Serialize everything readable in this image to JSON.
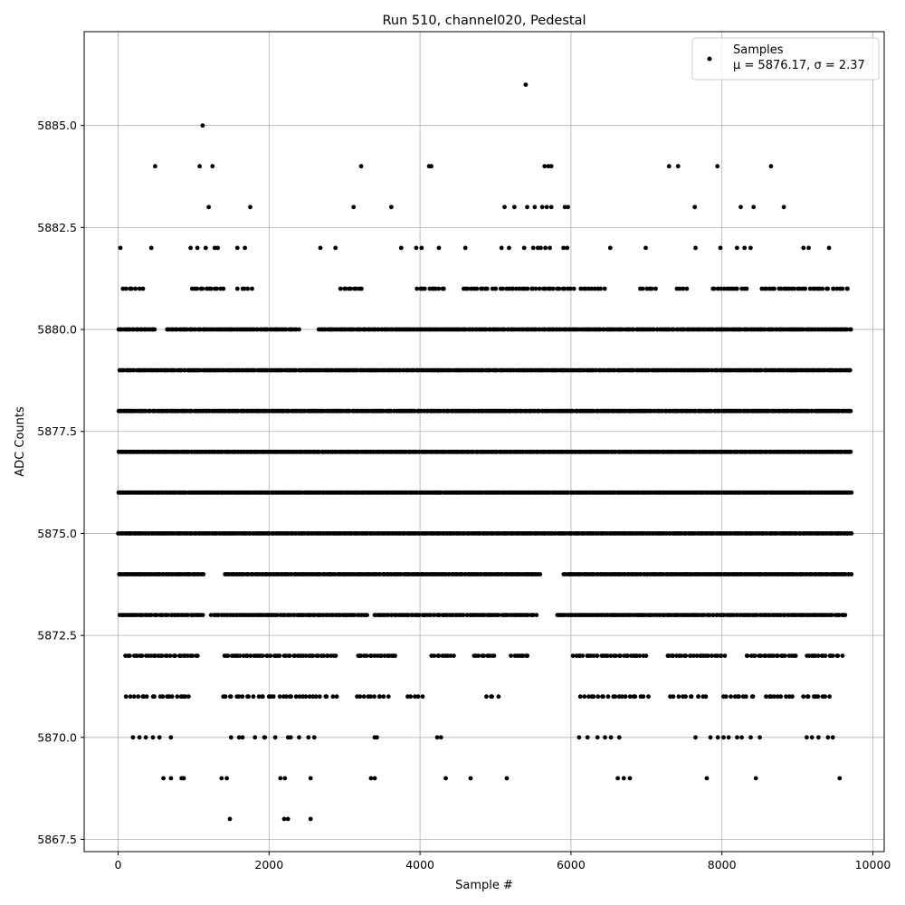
{
  "chart_data": {
    "type": "scatter",
    "title": "Run 510, channel020, Pedestal",
    "xlabel": "Sample #",
    "ylabel": "ADC Counts",
    "xlim": [
      -450,
      10150
    ],
    "ylim": [
      5867.2,
      5887.3
    ],
    "xticks": [
      0,
      2000,
      4000,
      6000,
      8000,
      10000
    ],
    "xtick_labels": [
      "0",
      "2000",
      "4000",
      "6000",
      "8000",
      "10000"
    ],
    "yticks": [
      5867.5,
      5870.0,
      5872.5,
      5875.0,
      5877.5,
      5880.0,
      5882.5,
      5885.0
    ],
    "ytick_labels": [
      "5867.5",
      "5870.0",
      "5872.5",
      "5875.0",
      "5877.5",
      "5880.0",
      "5882.5",
      "5885.0"
    ],
    "grid": true,
    "legend": {
      "placement": "top-right",
      "entry_name": "Samples",
      "entry_stats": "μ = 5876.17, σ = 2.37"
    },
    "marker_color": "#000000",
    "series": [
      {
        "points": [
          [
            5400,
            5886
          ],
          [
            1120,
            5885
          ],
          [
            490,
            5884
          ],
          [
            1080,
            5884
          ],
          [
            1250,
            5884
          ],
          [
            3220,
            5884
          ],
          [
            4120,
            5884
          ],
          [
            4150,
            5884
          ],
          [
            5650,
            5884
          ],
          [
            5700,
            5884
          ],
          [
            5740,
            5884
          ],
          [
            7300,
            5884
          ],
          [
            7420,
            5884
          ],
          [
            7940,
            5884
          ],
          [
            8650,
            5884
          ],
          [
            1200,
            5883
          ],
          [
            1750,
            5883
          ],
          [
            3120,
            5883
          ],
          [
            3620,
            5883
          ],
          [
            5120,
            5883
          ],
          [
            5250,
            5883
          ],
          [
            5420,
            5883
          ],
          [
            5520,
            5883
          ],
          [
            5620,
            5883
          ],
          [
            5680,
            5883
          ],
          [
            5740,
            5883
          ],
          [
            5920,
            5883
          ],
          [
            5960,
            5883
          ],
          [
            7640,
            5883
          ],
          [
            8250,
            5883
          ],
          [
            8420,
            5883
          ],
          [
            8820,
            5883
          ],
          [
            30,
            5882
          ],
          [
            440,
            5882
          ],
          [
            960,
            5882
          ],
          [
            1050,
            5882
          ],
          [
            1160,
            5882
          ],
          [
            1280,
            5882
          ],
          [
            1320,
            5882
          ],
          [
            1580,
            5882
          ],
          [
            1680,
            5882
          ],
          [
            2680,
            5882
          ],
          [
            2880,
            5882
          ],
          [
            3750,
            5882
          ],
          [
            3950,
            5882
          ],
          [
            4020,
            5882
          ],
          [
            4250,
            5882
          ],
          [
            4600,
            5882
          ],
          [
            5080,
            5882
          ],
          [
            5180,
            5882
          ],
          [
            5380,
            5882
          ],
          [
            5500,
            5882
          ],
          [
            5560,
            5882
          ],
          [
            5600,
            5882
          ],
          [
            5660,
            5882
          ],
          [
            5720,
            5882
          ],
          [
            5900,
            5882
          ],
          [
            5950,
            5882
          ],
          [
            6520,
            5882
          ],
          [
            6990,
            5882
          ],
          [
            7650,
            5882
          ],
          [
            7980,
            5882
          ],
          [
            8200,
            5882
          ],
          [
            8300,
            5882
          ],
          [
            8380,
            5882
          ],
          [
            9080,
            5882
          ],
          [
            9150,
            5882
          ],
          [
            9420,
            5882
          ]
        ],
        "rows": [
          {
            "y": 5881,
            "ranges": [
              [
                60,
                330
              ],
              [
                960,
                1400
              ],
              [
                1580,
                1780
              ],
              [
                2930,
                3250
              ],
              [
                3950,
                4350
              ],
              [
                4550,
                6050
              ],
              [
                6100,
                6450
              ],
              [
                6900,
                7130
              ],
              [
                7400,
                7560
              ],
              [
                7850,
                8350
              ],
              [
                8500,
                9700
              ]
            ],
            "n": 150
          },
          {
            "y": 5880,
            "ranges": [
              [
                0,
                500
              ],
              [
                640,
                2400
              ],
              [
                2650,
                9720
              ]
            ],
            "n": 420
          },
          {
            "y": 5879,
            "ranges": [
              [
                0,
                9720
              ]
            ],
            "n": 430
          },
          {
            "y": 5878,
            "ranges": [
              [
                0,
                9720
              ]
            ],
            "n": 460
          },
          {
            "y": 5877,
            "ranges": [
              [
                0,
                9720
              ]
            ],
            "n": 500
          },
          {
            "y": 5876,
            "ranges": [
              [
                0,
                9720
              ]
            ],
            "n": 520
          },
          {
            "y": 5875,
            "ranges": [
              [
                0,
                9720
              ]
            ],
            "n": 500
          },
          {
            "y": 5874,
            "ranges": [
              [
                0,
                1140
              ],
              [
                1400,
                5600
              ],
              [
                5900,
                9720
              ]
            ],
            "n": 430
          },
          {
            "y": 5873,
            "ranges": [
              [
                0,
                1140
              ],
              [
                1230,
                3300
              ],
              [
                3380,
                5550
              ],
              [
                5800,
                9650
              ]
            ],
            "n": 380
          },
          {
            "y": 5872,
            "ranges": [
              [
                80,
                1080
              ],
              [
                1380,
                2900
              ],
              [
                3150,
                3700
              ],
              [
                4150,
                4450
              ],
              [
                4700,
                5000
              ],
              [
                5200,
                5450
              ],
              [
                6020,
                7000
              ],
              [
                7250,
                8050
              ],
              [
                8300,
                9000
              ],
              [
                9100,
                9600
              ]
            ],
            "n": 210
          },
          {
            "y": 5871,
            "ranges": [
              [
                100,
                980
              ],
              [
                1350,
                2900
              ],
              [
                3150,
                3600
              ],
              [
                3800,
                4050
              ],
              [
                4850,
                5050
              ],
              [
                6100,
                7030
              ],
              [
                7300,
                7830
              ],
              [
                8000,
                8450
              ],
              [
                8550,
                8950
              ],
              [
                9050,
                9450
              ]
            ],
            "n": 130
          },
          {
            "y": 5870,
            "ranges": [
              [
                100,
                700
              ],
              [
                1400,
                2700
              ],
              [
                3350,
                3450
              ],
              [
                4150,
                4350
              ],
              [
                6100,
                6700
              ],
              [
                7650,
                8550
              ],
              [
                9050,
                9550
              ]
            ],
            "n": 40
          }
        ],
        "sparse_points": [
          [
            600,
            5869
          ],
          [
            700,
            5869
          ],
          [
            840,
            5869
          ],
          [
            870,
            5869
          ],
          [
            1370,
            5869
          ],
          [
            1440,
            5869
          ],
          [
            2150,
            5869
          ],
          [
            2210,
            5869
          ],
          [
            2550,
            5869
          ],
          [
            3350,
            5869
          ],
          [
            3400,
            5869
          ],
          [
            4340,
            5869
          ],
          [
            4670,
            5869
          ],
          [
            5150,
            5869
          ],
          [
            6620,
            5869
          ],
          [
            6700,
            5869
          ],
          [
            6780,
            5869
          ],
          [
            7800,
            5869
          ],
          [
            8450,
            5869
          ],
          [
            9560,
            5869
          ],
          [
            1480,
            5868
          ],
          [
            2200,
            5868
          ],
          [
            2250,
            5868
          ],
          [
            2550,
            5868
          ]
        ]
      }
    ]
  }
}
